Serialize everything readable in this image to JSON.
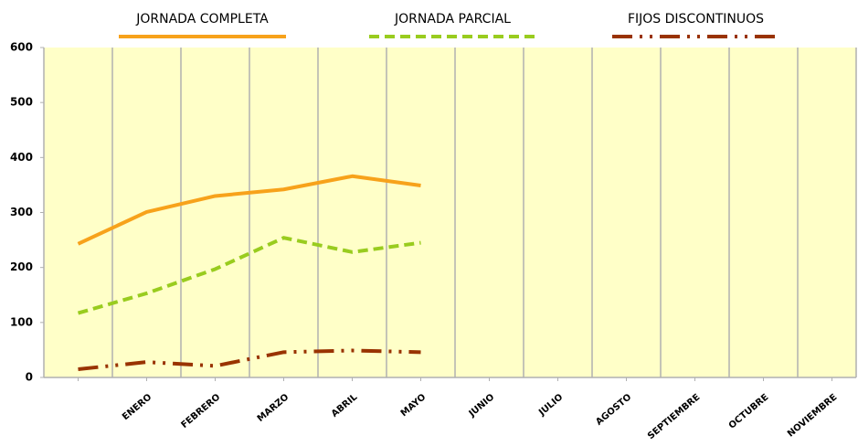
{
  "chart_data": {
    "type": "line",
    "categories": [
      null,
      "ENERO",
      "FEBRERO",
      "MARZO",
      "ABRIL",
      "MAYO",
      "JUNIO",
      "JULIO",
      "AGOSTO",
      "SEPTIEMBRE",
      "OCTUBRE",
      "NOVIEMBRE"
    ],
    "series": [
      {
        "name": "JORNADA COMPLETA",
        "color": "#f7a21b",
        "dash": "solid",
        "values": [
          243,
          301,
          330,
          342,
          366,
          349,
          null,
          null,
          null,
          null,
          null,
          null
        ]
      },
      {
        "name": "JORNADA PARCIAL",
        "color": "#99cc1f",
        "dash": "dashed",
        "values": [
          117,
          153,
          197,
          254,
          228,
          245,
          null,
          null,
          null,
          null,
          null,
          null
        ]
      },
      {
        "name": "FIJOS DISCONTINUOS",
        "color": "#993300",
        "dash": "dashdotdot",
        "values": [
          15,
          28,
          21,
          46,
          49,
          46,
          null,
          null,
          null,
          null,
          null,
          null
        ]
      }
    ],
    "ylim": [
      0,
      600
    ],
    "yticks": [
      0,
      100,
      200,
      300,
      400,
      500,
      600
    ],
    "grid": "vertical",
    "legend": "top",
    "background": "#ffffc8"
  }
}
